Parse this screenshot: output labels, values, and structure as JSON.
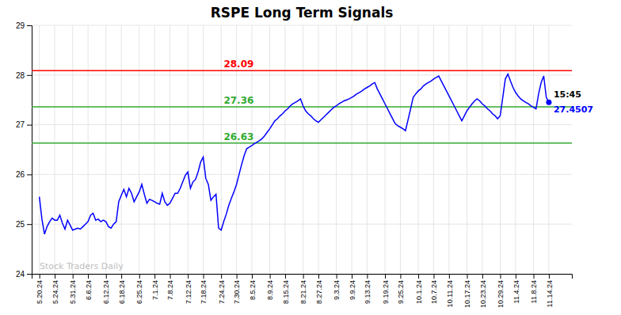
{
  "chart_data": {
    "type": "line",
    "title": "RSPE Long Term Signals",
    "color": "blue",
    "ylim": [
      24,
      29
    ],
    "yticks": [
      24,
      25,
      26,
      27,
      28,
      29
    ],
    "grid": true,
    "annotations": [
      {
        "text": "28.09",
        "y": 28.09,
        "color": "red"
      },
      {
        "text": "27.36",
        "y": 27.36,
        "color": "#33aa33"
      },
      {
        "text": "26.63",
        "y": 26.63,
        "color": "#33aa33"
      }
    ],
    "last_point_labels": [
      "15:45",
      "27.4507"
    ],
    "watermark": "Stock Traders Daily",
    "categories": [
      "5.20.24",
      null,
      null,
      null,
      null,
      null,
      "5.24.24",
      null,
      null,
      null,
      null,
      null,
      null,
      "5.31.24",
      null,
      null,
      null,
      null,
      null,
      "6.6.24",
      null,
      null,
      null,
      null,
      null,
      null,
      "6.12.24",
      null,
      null,
      null,
      null,
      null,
      "6.18.24",
      null,
      null,
      null,
      null,
      null,
      null,
      "6.25.24",
      null,
      null,
      null,
      null,
      null,
      "7.1.24",
      null,
      null,
      null,
      null,
      null,
      "7.8.24",
      null,
      null,
      null,
      null,
      null,
      null,
      "7.12.24",
      null,
      null,
      null,
      null,
      null,
      "7.18.24",
      null,
      null,
      null,
      null,
      null,
      null,
      "7.24.24",
      null,
      null,
      null,
      null,
      null,
      "7.30.24",
      null,
      null,
      null,
      null,
      null,
      "8.5.24",
      null,
      null,
      null,
      null,
      null,
      null,
      "8.9.24",
      null,
      null,
      null,
      null,
      null,
      "8.15.24",
      null,
      null,
      null,
      null,
      null,
      null,
      "8.21.24",
      null,
      null,
      null,
      null,
      null,
      "8.27.24",
      null,
      null,
      null,
      null,
      null,
      null,
      "9.3.24",
      null,
      null,
      null,
      null,
      null,
      "9.9.24",
      null,
      null,
      null,
      null,
      null,
      "9.13.24",
      null,
      null,
      null,
      null,
      null,
      null,
      "9.19.24",
      null,
      null,
      null,
      null,
      null,
      "9.25.24",
      null,
      null,
      null,
      null,
      null,
      null,
      "10.1.24",
      null,
      null,
      null,
      null,
      null,
      "10.7.24",
      null,
      null,
      null,
      null,
      null,
      "10.11.24",
      null,
      null,
      null,
      null,
      null,
      null,
      "10.17.24",
      null,
      null,
      null,
      null,
      null,
      "10.23.24",
      null,
      null,
      null,
      null,
      null,
      null,
      "10.29.24",
      null,
      null,
      null,
      null,
      null,
      "11.4.24",
      null,
      null,
      null,
      null,
      null,
      null,
      "11.8.24",
      null,
      null,
      null,
      null,
      null,
      "11.14.24"
    ],
    "values": [
      25.55,
      25.1,
      24.8,
      24.95,
      25.05,
      25.12,
      25.08,
      25.08,
      25.18,
      25.02,
      24.9,
      25.08,
      24.98,
      24.88,
      24.9,
      24.92,
      24.9,
      24.95,
      25.0,
      25.05,
      25.18,
      25.22,
      25.08,
      25.1,
      25.05,
      25.08,
      25.05,
      24.95,
      24.92,
      25.0,
      25.05,
      25.45,
      25.58,
      25.7,
      25.55,
      25.72,
      25.62,
      25.45,
      25.55,
      25.65,
      25.8,
      25.6,
      25.42,
      25.5,
      25.48,
      25.45,
      25.42,
      25.4,
      25.62,
      25.45,
      25.38,
      25.42,
      25.52,
      25.62,
      25.62,
      25.72,
      25.85,
      25.98,
      26.05,
      25.72,
      25.85,
      25.9,
      26.05,
      26.25,
      26.35,
      25.92,
      25.8,
      25.48,
      25.55,
      25.6,
      24.92,
      24.88,
      25.05,
      25.2,
      25.38,
      25.52,
      25.65,
      25.8,
      26.0,
      26.2,
      26.38,
      26.52,
      26.55,
      26.58,
      26.62,
      26.65,
      26.68,
      26.72,
      26.78,
      26.85,
      26.92,
      27.0,
      27.08,
      27.12,
      27.18,
      27.22,
      27.28,
      27.32,
      27.38,
      27.42,
      27.45,
      27.48,
      27.52,
      27.38,
      27.28,
      27.22,
      27.18,
      27.12,
      27.08,
      27.05,
      27.1,
      27.15,
      27.2,
      27.25,
      27.3,
      27.35,
      27.38,
      27.42,
      27.45,
      27.48,
      27.5,
      27.52,
      27.55,
      27.58,
      27.62,
      27.65,
      27.68,
      27.72,
      27.75,
      27.78,
      27.82,
      27.85,
      27.72,
      27.62,
      27.52,
      27.42,
      27.32,
      27.22,
      27.12,
      27.02,
      26.98,
      26.95,
      26.92,
      26.88,
      27.1,
      27.32,
      27.55,
      27.62,
      27.68,
      27.72,
      27.78,
      27.82,
      27.85,
      27.88,
      27.92,
      27.95,
      27.98,
      27.88,
      27.78,
      27.68,
      27.58,
      27.48,
      27.38,
      27.28,
      27.18,
      27.08,
      27.18,
      27.28,
      27.35,
      27.42,
      27.48,
      27.52,
      27.48,
      27.42,
      27.38,
      27.32,
      27.28,
      27.22,
      27.18,
      27.12,
      27.18,
      27.55,
      27.92,
      28.02,
      27.88,
      27.75,
      27.65,
      27.58,
      27.52,
      27.48,
      27.45,
      27.42,
      27.38,
      27.35,
      27.32,
      27.62,
      27.85,
      27.98,
      27.55,
      27.4507
    ]
  }
}
